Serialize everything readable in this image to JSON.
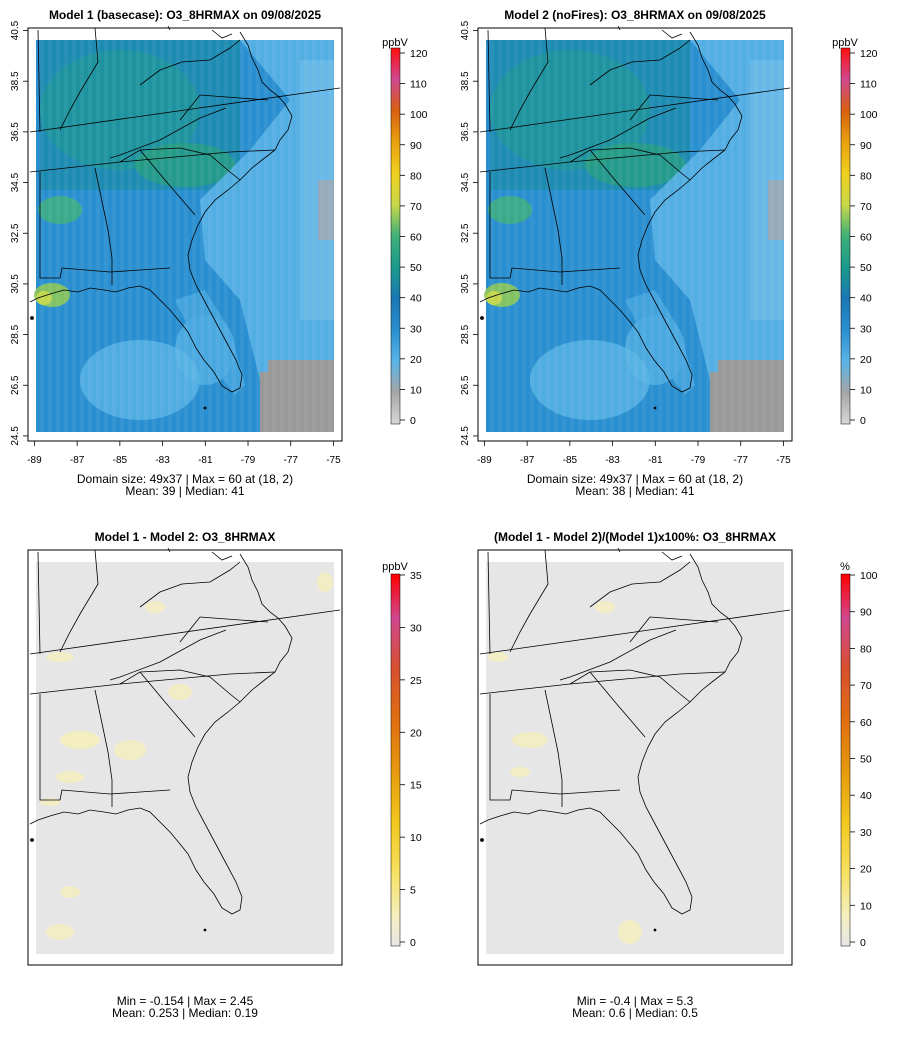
{
  "chart_data": [
    {
      "type": "heatmap",
      "title": "Model 1 (basecase): O3_8HRMAX on 09/08/2025",
      "unit": "ppbV",
      "colorbar_ticks": [
        0,
        10,
        20,
        30,
        40,
        50,
        60,
        70,
        80,
        90,
        100,
        110,
        120
      ],
      "colorbar_range": [
        0,
        120
      ],
      "x_ticks": [
        -89,
        -87,
        -85,
        -83,
        -81,
        -79,
        -77,
        -75
      ],
      "y_ticks": [
        24.5,
        26.5,
        28.5,
        30.5,
        32.5,
        34.5,
        36.5,
        38.5,
        40.5
      ],
      "xlim": [
        -89.3,
        -74.6
      ],
      "ylim": [
        24.3,
        40.6
      ],
      "caption_line1": "Domain size: 49x37 | Max = 60 at (18, 2)",
      "caption_line2": "Mean: 39 |  Median: 41",
      "stats": {
        "grid": "49x37",
        "max": 60,
        "max_at": "(18, 2)",
        "mean": 39,
        "median": 41
      }
    },
    {
      "type": "heatmap",
      "title": "Model 2 (noFires): O3_8HRMAX on 09/08/2025",
      "unit": "ppbV",
      "colorbar_ticks": [
        0,
        10,
        20,
        30,
        40,
        50,
        60,
        70,
        80,
        90,
        100,
        110,
        120
      ],
      "colorbar_range": [
        0,
        120
      ],
      "x_ticks": [
        -89,
        -87,
        -85,
        -83,
        -81,
        -79,
        -77,
        -75
      ],
      "y_ticks": [
        24.5,
        26.5,
        28.5,
        30.5,
        32.5,
        34.5,
        36.5,
        38.5,
        40.5
      ],
      "xlim": [
        -89.3,
        -74.6
      ],
      "ylim": [
        24.3,
        40.6
      ],
      "caption_line1": "Domain size: 49x37 | Max = 60 at (18, 2)",
      "caption_line2": "Mean: 38 |  Median: 41",
      "stats": {
        "grid": "49x37",
        "max": 60,
        "max_at": "(18, 2)",
        "mean": 38,
        "median": 41
      }
    },
    {
      "type": "heatmap",
      "title": "Model 1 - Model 2: O3_8HRMAX",
      "unit": "ppbV",
      "colorbar_ticks": [
        0,
        5,
        10,
        15,
        20,
        25,
        30,
        35
      ],
      "colorbar_range": [
        0,
        35
      ],
      "caption_line1": "Min = -0.154 | Max = 2.45",
      "caption_line2": "Mean: 0.253 |  Median: 0.19",
      "stats": {
        "min": -0.154,
        "max": 2.45,
        "mean": 0.253,
        "median": 0.19
      }
    },
    {
      "type": "heatmap",
      "title": "(Model 1 - Model 2)/(Model 1)x100%: O3_8HRMAX",
      "unit": "%",
      "colorbar_ticks": [
        0,
        10,
        20,
        30,
        40,
        50,
        60,
        70,
        80,
        90,
        100
      ],
      "colorbar_range": [
        0,
        100
      ],
      "caption_line1": "Min = -0.4 | Max = 5.3",
      "caption_line2": "Mean: 0.6 |  Median: 0.5",
      "stats": {
        "min": -0.4,
        "max": 5.3,
        "mean": 0.6,
        "median": 0.5
      }
    }
  ],
  "colors": {
    "conc_scale": [
      "#d8d8d8",
      "#a6a6a6",
      "#5ab4e6",
      "#2a8fd0",
      "#1a78b4",
      "#1a9a8c",
      "#3fb078",
      "#c8d84a",
      "#f0d020",
      "#e8a010",
      "#d86010",
      "#d04890",
      "#ff1010"
    ],
    "diff_scale": [
      "#e6e6e6",
      "#f5efc0",
      "#f6e060",
      "#f2c820",
      "#e8a010",
      "#e07010",
      "#d85030",
      "#d04890",
      "#ff0000"
    ],
    "ocean": "#8fc8ee",
    "background_gray": "#e6e6e6"
  }
}
